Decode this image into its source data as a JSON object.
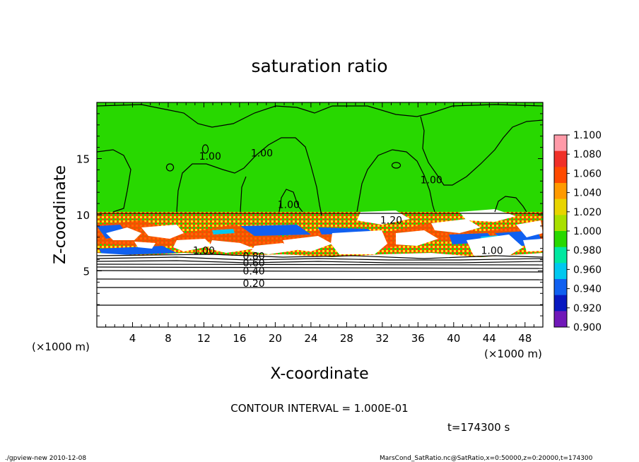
{
  "chart_data": {
    "type": "heatmap",
    "title": "saturation ratio",
    "xlabel": "X-coordinate",
    "ylabel": "Z-coordinate",
    "x_unit": "(×1000 m)",
    "y_unit": "(×1000 m)",
    "xlim": [
      0,
      50
    ],
    "ylim": [
      0,
      20
    ],
    "x_ticks": [
      4,
      8,
      12,
      16,
      20,
      24,
      28,
      32,
      36,
      40,
      44,
      48
    ],
    "y_ticks": [
      5,
      10,
      15
    ],
    "colorbar": {
      "levels": [
        "1.100",
        "1.080",
        "1.060",
        "1.040",
        "1.020",
        "1.000",
        "0.980",
        "0.960",
        "0.940",
        "0.920",
        "0.900"
      ],
      "colors": [
        "#ff9aa8",
        "#f03028",
        "#ff4a00",
        "#ff9a00",
        "#e8d400",
        "#a8e000",
        "#28d800",
        "#00e8a0",
        "#00c8f0",
        "#1060f0",
        "#0818c0",
        "#7018b8"
      ]
    },
    "contour_labels": [
      {
        "text": "1.00",
        "x": 12.7,
        "z": 14.9
      },
      {
        "text": "1.00",
        "x": 18.5,
        "z": 15.2
      },
      {
        "text": "1.00",
        "x": 37.5,
        "z": 12.8
      },
      {
        "text": "1.00",
        "x": 21.5,
        "z": 10.6
      },
      {
        "text": "1.20",
        "x": 33.0,
        "z": 9.2
      },
      {
        "text": "1.00",
        "x": 12.0,
        "z": 6.5
      },
      {
        "text": "1.00",
        "x": 44.3,
        "z": 6.5
      },
      {
        "text": "0.80",
        "x": 17.6,
        "z": 6.0
      },
      {
        "text": "0.60",
        "x": 17.6,
        "z": 5.4
      },
      {
        "text": "0.40",
        "x": 17.6,
        "z": 4.7
      },
      {
        "text": "0.20",
        "x": 17.6,
        "z": 3.6
      }
    ],
    "contour_interval_text": "CONTOUR INTERVAL = 1.000E-01",
    "time_text": "t=174300 s",
    "grid": false,
    "legend": "right"
  },
  "footer": {
    "left": "./gpview-new   2010-12-08",
    "right": "MarsCond_SatRatio.nc@SatRatio,x=0:50000,z=0:20000,t=174300"
  }
}
